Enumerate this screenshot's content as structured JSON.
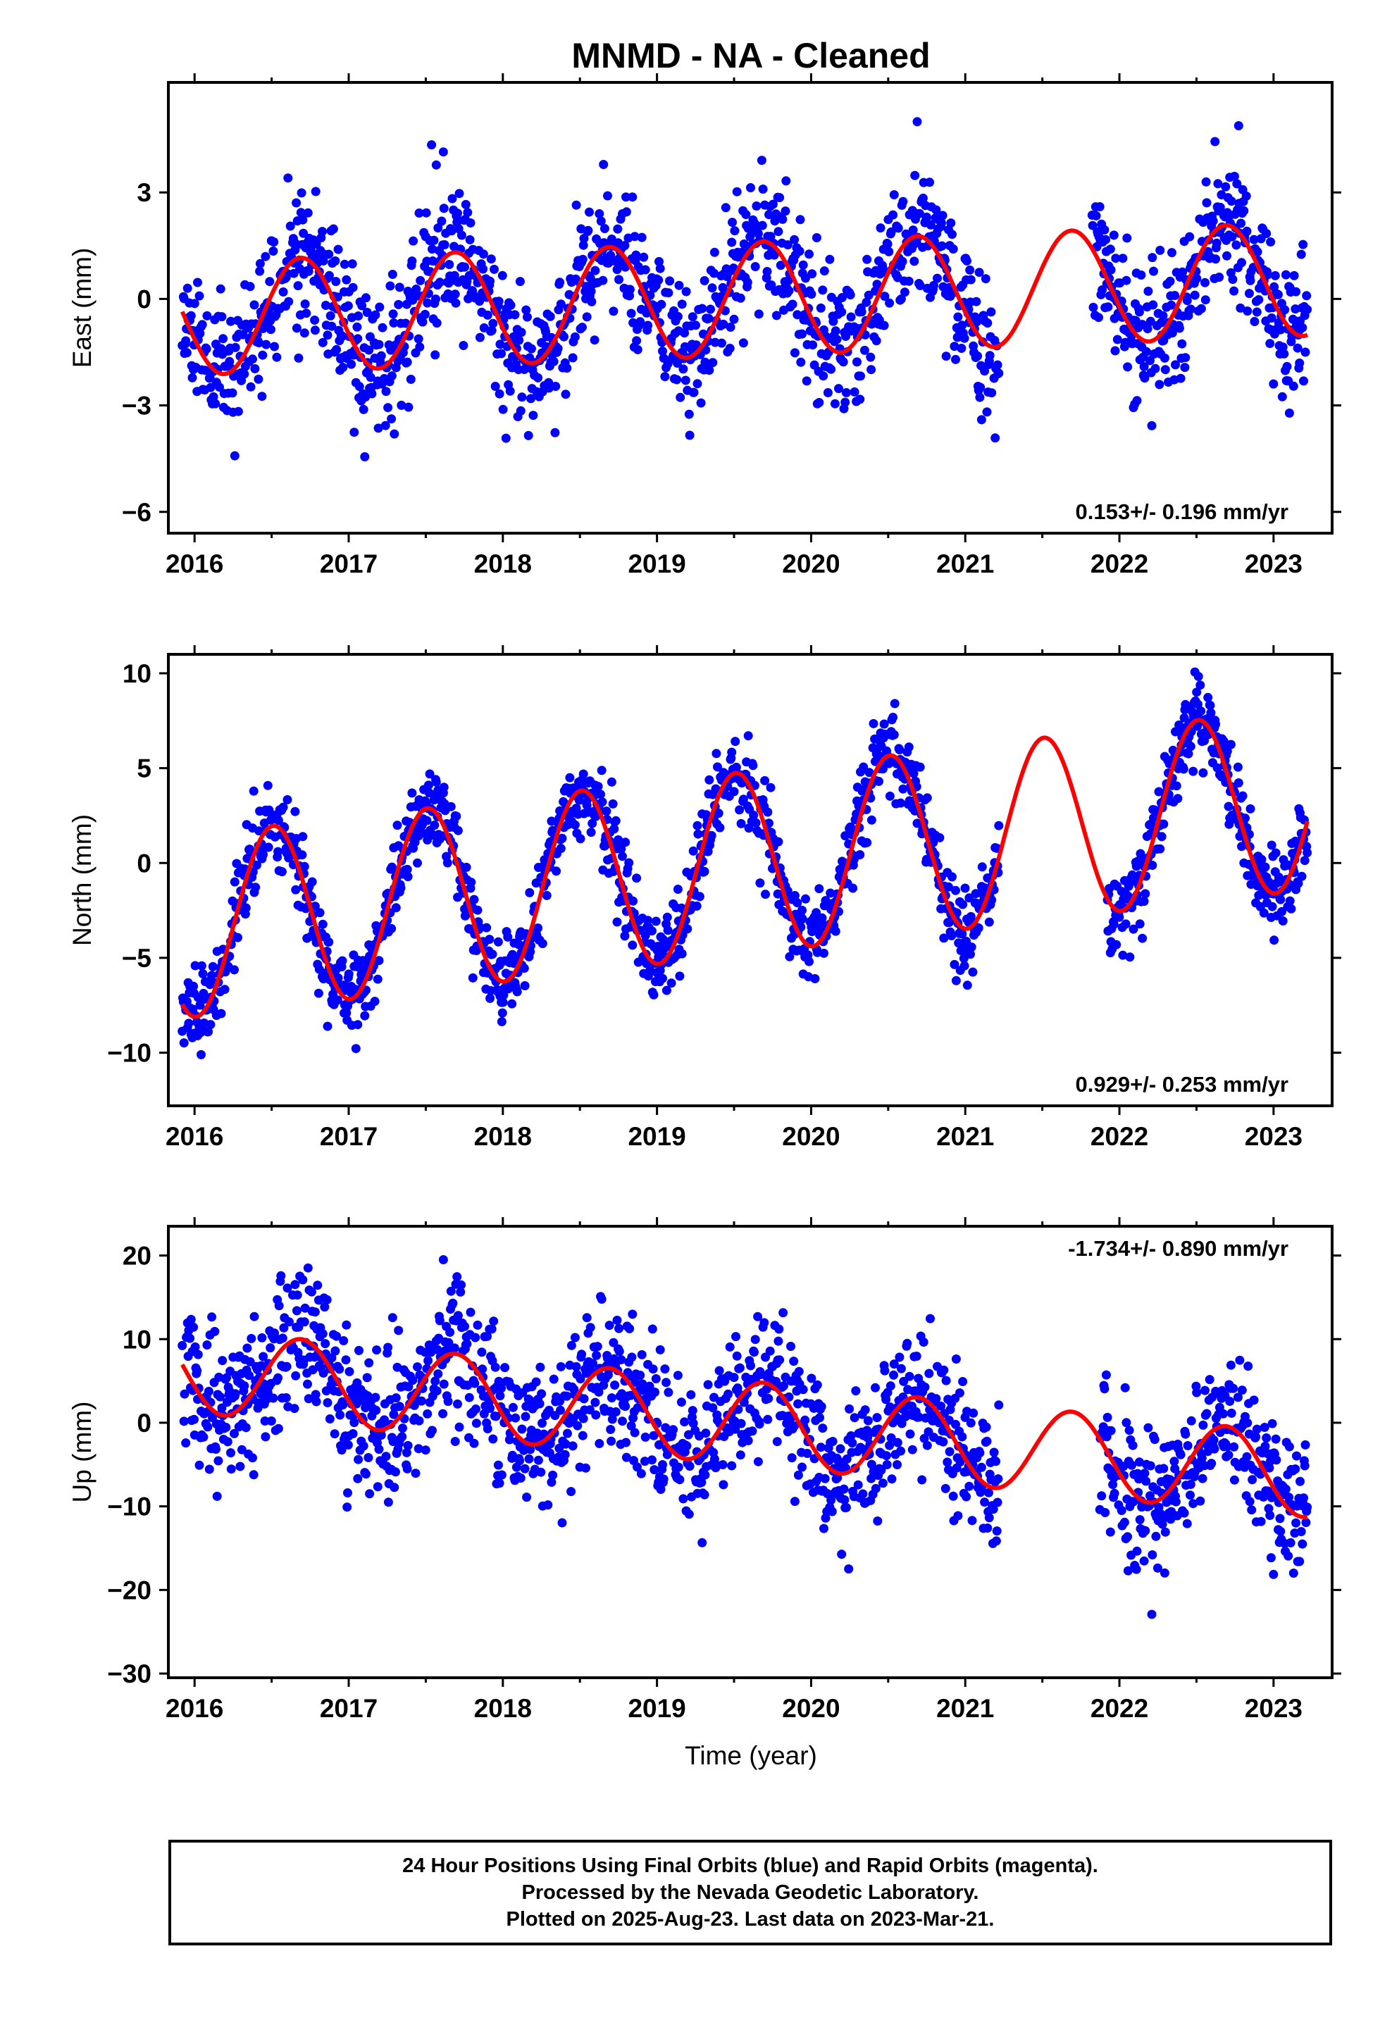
{
  "title": "MNMD  - NA - Cleaned",
  "xlabel": "Time (year)",
  "caption": {
    "line1": "24 Hour Positions Using Final Orbits (blue) and Rapid Orbits (magenta).",
    "line2": "Processed by the Nevada Geodetic Laboratory.",
    "line3": "Plotted on 2025-Aug-23. Last data on 2023-Mar-21."
  },
  "colors": {
    "data_points": "#0000ff",
    "model_fit": "#ff0000",
    "frame": "#000000"
  },
  "chart_data": [
    {
      "type": "scatter",
      "name": "east",
      "ylabel": "East (mm)",
      "rate_text": "0.153+/- 0.196 mm/yr",
      "rate_position": "bottom-right",
      "xlim": [
        2015.83,
        2023.38
      ],
      "ylim": [
        -6.6,
        6.1
      ],
      "xticks": [
        2016,
        2017,
        2018,
        2019,
        2020,
        2021,
        2022,
        2023
      ],
      "yticks": [
        -6,
        -3,
        0,
        3
      ],
      "yticks_labels": [
        "−6",
        "−3",
        "0",
        "3"
      ],
      "grid": false,
      "data_span": [
        2015.92,
        2023.22
      ],
      "data_gap": [
        2021.22,
        2021.82
      ],
      "model": {
        "offset": 0.0,
        "rate": 0.153,
        "amplitude": 1.6,
        "peak": 0.69,
        "noise_std": 1.0,
        "seed": 11
      }
    },
    {
      "type": "scatter",
      "name": "north",
      "ylabel": "North (mm)",
      "rate_text": "0.929+/- 0.253 mm/yr",
      "rate_position": "bottom-right",
      "xlim": [
        2015.83,
        2023.38
      ],
      "ylim": [
        -12.8,
        11.0
      ],
      "xticks": [
        2016,
        2017,
        2018,
        2019,
        2020,
        2021,
        2022,
        2023
      ],
      "yticks": [
        -10,
        -5,
        0,
        5,
        10
      ],
      "yticks_labels": [
        "−10",
        "−5",
        "0",
        "5",
        "10"
      ],
      "grid": false,
      "data_span": [
        2015.92,
        2023.22
      ],
      "data_gap": [
        2021.22,
        2021.92
      ],
      "model": {
        "offset": 0.0,
        "rate": 0.929,
        "amplitude": 4.8,
        "peak": 0.51,
        "noise_std": 1.1,
        "seed": 23
      }
    },
    {
      "type": "scatter",
      "name": "up",
      "ylabel": "Up (mm)",
      "rate_text": "-1.734+/- 0.890 mm/yr",
      "rate_position": "top-right",
      "xlim": [
        2015.83,
        2023.38
      ],
      "ylim": [
        -30.5,
        23.5
      ],
      "xticks": [
        2016,
        2017,
        2018,
        2019,
        2020,
        2021,
        2022,
        2023
      ],
      "yticks": [
        -30,
        -20,
        -10,
        0,
        10,
        20
      ],
      "yticks_labels": [
        "−30",
        "−20",
        "−10",
        "0",
        "10",
        "20"
      ],
      "grid": false,
      "data_span": [
        2015.92,
        2023.22
      ],
      "data_gap": [
        2021.22,
        2021.86
      ],
      "model": {
        "offset": 0.0,
        "rate": -1.734,
        "amplitude": 5.0,
        "peak": 0.69,
        "noise_std": 4.2,
        "seed": 37
      }
    }
  ]
}
